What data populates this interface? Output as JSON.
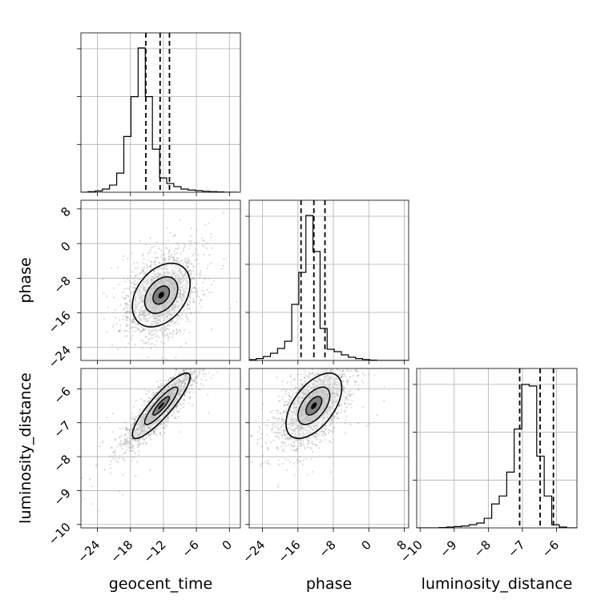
{
  "figure": {
    "type": "corner_plot",
    "parameters": [
      "geocent_time",
      "phase",
      "luminosity_distance"
    ]
  },
  "chart_data": [
    {
      "type": "histogram",
      "panel": "geocent_time",
      "xlim": [
        -27,
        2
      ],
      "bin_width": 1.3,
      "bin_start": -27,
      "counts": [
        0,
        0.004,
        0.008,
        0.02,
        0.045,
        0.12,
        0.35,
        0.6,
        0.905,
        0.6,
        0.27,
        0.09,
        0.055,
        0.035,
        0.02,
        0.014,
        0.01,
        0.006,
        0.004,
        0.002,
        0,
        0
      ],
      "quantiles": [
        -15.2,
        -12.6,
        -10.9
      ],
      "grid": true
    },
    {
      "type": "histogram",
      "panel": "phase",
      "xlim": [
        -27,
        9
      ],
      "bin_width": 1.6,
      "bin_start": -27,
      "counts": [
        0.005,
        0.012,
        0.025,
        0.045,
        0.075,
        0.12,
        0.35,
        0.55,
        0.905,
        0.68,
        0.2,
        0.07,
        0.055,
        0.035,
        0.02,
        0.012,
        0.006,
        0.002,
        0,
        0,
        0,
        0,
        0
      ],
      "quantiles": [
        -15.3,
        -12.4,
        -9.9
      ],
      "grid": true
    },
    {
      "type": "histogram",
      "panel": "luminosity_distance",
      "xlim": [
        -10.1,
        -5.4
      ],
      "bin_width": 0.22,
      "bin_start": -10.1,
      "counts": [
        0,
        0,
        0,
        0.002,
        0.005,
        0.008,
        0.012,
        0.02,
        0.03,
        0.06,
        0.15,
        0.2,
        0.35,
        0.62,
        0.9,
        0.89,
        0.45,
        0.2,
        0.02,
        0.005,
        0,
        0
      ],
      "quantiles": [
        -7.08,
        -6.48,
        -6.09
      ],
      "grid": true
    },
    {
      "type": "scatter",
      "panel": "phase vs geocent_time",
      "x": "geocent_time",
      "y": "phase",
      "xlim": [
        -27,
        2
      ],
      "ylim": [
        -27,
        10
      ],
      "center": [
        -12.4,
        -11.9
      ],
      "spread": [
        3.0,
        4.2
      ],
      "correlation": 0.35,
      "point_count": 2200,
      "grid": true
    },
    {
      "type": "scatter",
      "panel": "luminosity_distance vs geocent_time",
      "x": "geocent_time",
      "y": "luminosity_distance",
      "xlim": [
        -27,
        2
      ],
      "ylim": [
        -10.1,
        -5.4
      ],
      "center": [
        -12.4,
        -6.5
      ],
      "spread": [
        3.0,
        0.55
      ],
      "correlation": 0.88,
      "point_count": 2200,
      "grid": true
    },
    {
      "type": "scatter",
      "panel": "luminosity_distance vs phase",
      "x": "phase",
      "y": "luminosity_distance",
      "xlim": [
        -27,
        9
      ],
      "ylim": [
        -10.1,
        -5.4
      ],
      "center": [
        -12.4,
        -6.5
      ],
      "spread": [
        3.6,
        0.55
      ],
      "correlation": 0.55,
      "point_count": 2200,
      "grid": true
    }
  ],
  "axes": {
    "geocent_time": {
      "label": "geocent_time",
      "tick_values": [
        -24,
        -18,
        -12,
        -6,
        0
      ],
      "tick_labels": [
        "−24",
        "−18",
        "−12",
        "−6",
        "0"
      ]
    },
    "phase": {
      "label": "phase",
      "tick_values": [
        -24,
        -16,
        -8,
        0,
        8
      ],
      "tick_labels": [
        "−24",
        "−16",
        "−8",
        "0",
        "8"
      ]
    },
    "luminosity_distance": {
      "label": "luminosity_distance",
      "tick_values": [
        -10,
        -9,
        -8,
        -7,
        -6
      ],
      "tick_labels": [
        "−10",
        "−9",
        "−8",
        "−7",
        "−6"
      ]
    }
  },
  "colors": {
    "hist_line": "#000000",
    "scatter": "#808080",
    "contour": "#000000",
    "grid": "#b0b0b0"
  }
}
